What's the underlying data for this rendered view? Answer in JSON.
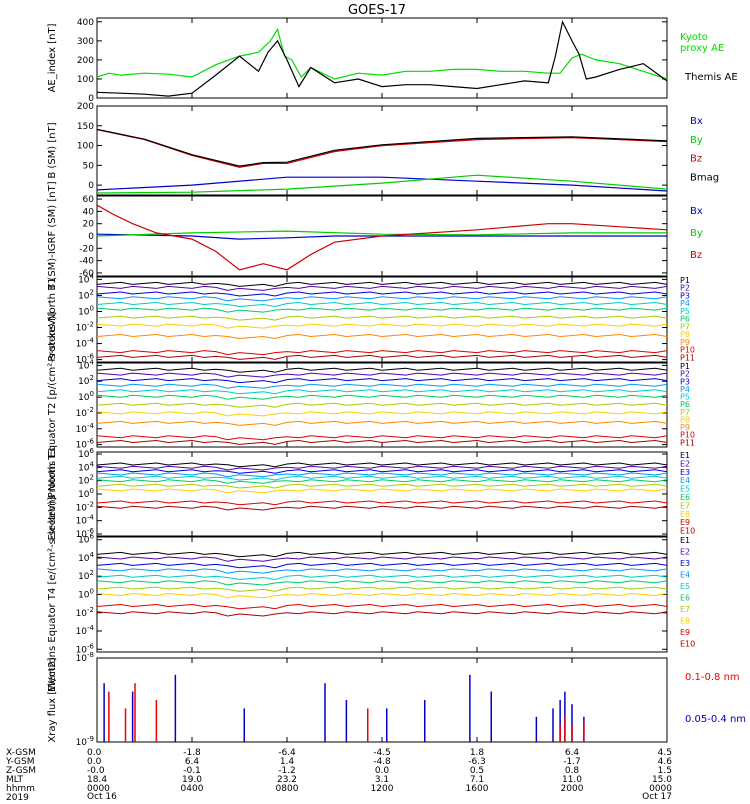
{
  "title": "GOES-17",
  "x_axis": {
    "range_hours": [
      0,
      24
    ],
    "tick_hours": [
      0,
      4,
      8,
      12,
      16,
      20,
      24
    ],
    "hhmm": [
      "0000",
      "0400",
      "0800",
      "1200",
      "1600",
      "2000",
      "0000"
    ],
    "row_labels": [
      "X-GSM",
      "Y-GSM",
      "Z-GSM",
      "MLT",
      "hhmm",
      "2019"
    ],
    "x_gsm": [
      "0.0",
      "-1.8",
      "-6.4",
      "-4.5",
      "1.8",
      "6.4",
      "4.5"
    ],
    "y_gsm": [
      "0.0",
      "6.4",
      "1.4",
      "-4.8",
      "-6.3",
      "-1.7",
      "4.6"
    ],
    "z_gsm": [
      "-0.0",
      "-0.1",
      "-1.2",
      "0.0",
      "0.5",
      "0.8",
      "1.5"
    ],
    "mlt": [
      "18.4",
      "19.0",
      "23.2",
      "3.1",
      "7.1",
      "11.0",
      "15.0"
    ],
    "dates": [
      {
        "hour": 0,
        "label": "Oct 16"
      },
      {
        "hour": 24,
        "label": "Oct 17"
      }
    ]
  },
  "chart_data": [
    {
      "type": "line",
      "panel": "ae",
      "ylabel": "AE_index [nT]",
      "ylim": [
        0,
        420
      ],
      "ticks": [
        "0",
        "100",
        "200",
        "300",
        "400"
      ],
      "tick_values": [
        0,
        100,
        200,
        300,
        400
      ],
      "legend": [
        {
          "text": "Kyoto proxy AE",
          "color": "#00dd00"
        },
        {
          "text": "Themis AE",
          "color": "#000000"
        }
      ],
      "series": [
        {
          "name": "Kyoto proxy AE",
          "color": "#00dd00",
          "x": [
            0,
            0.5,
            1,
            2,
            3,
            4,
            5,
            6,
            6.8,
            7.3,
            7.6,
            7.9,
            8.2,
            8.6,
            9,
            10,
            11,
            12,
            13,
            14,
            15,
            16,
            17,
            18,
            19,
            19.5,
            20,
            20.4,
            21,
            22,
            23,
            24
          ],
          "y": [
            110,
            130,
            120,
            130,
            125,
            110,
            175,
            220,
            240,
            300,
            360,
            220,
            200,
            110,
            160,
            100,
            130,
            120,
            140,
            140,
            150,
            150,
            140,
            140,
            130,
            130,
            210,
            230,
            200,
            180,
            140,
            100
          ]
        },
        {
          "name": "Themis AE",
          "color": "#000000",
          "x": [
            0,
            1,
            2,
            3,
            4,
            5,
            6,
            6.8,
            7.2,
            7.6,
            8,
            8.5,
            9,
            10,
            11,
            12,
            13,
            14,
            15,
            16,
            17,
            18,
            19,
            19.3,
            19.6,
            20,
            20.3,
            20.6,
            21,
            22,
            23,
            24
          ],
          "y": [
            30,
            25,
            20,
            10,
            25,
            120,
            220,
            140,
            240,
            300,
            200,
            60,
            160,
            80,
            100,
            60,
            70,
            70,
            60,
            50,
            70,
            90,
            80,
            220,
            400,
            300,
            230,
            100,
            110,
            150,
            180,
            90
          ]
        }
      ]
    },
    {
      "type": "line",
      "panel": "bsm",
      "ylabel": "B (SM) [nT]",
      "ylim": [
        -25,
        200
      ],
      "ticks": [
        "-50",
        "0",
        "50",
        "100",
        "150",
        "200"
      ],
      "tick_values": [
        -50,
        0,
        50,
        100,
        150,
        200
      ],
      "legend": [
        {
          "text": "Bx",
          "color": "#0000cc"
        },
        {
          "text": "By",
          "color": "#00cc00"
        },
        {
          "text": "Bz",
          "color": "#cc0000"
        },
        {
          "text": "Bmag",
          "color": "#000000"
        }
      ],
      "series": [
        {
          "name": "Bx",
          "color": "#0000cc",
          "x": [
            0,
            4,
            8,
            12,
            16,
            20,
            24
          ],
          "y": [
            -12,
            0,
            20,
            20,
            10,
            0,
            -15
          ]
        },
        {
          "name": "By",
          "color": "#00cc00",
          "x": [
            0,
            4,
            8,
            12,
            16,
            20,
            24
          ],
          "y": [
            -20,
            -18,
            -10,
            5,
            25,
            10,
            -10
          ]
        },
        {
          "name": "Bz",
          "color": "#cc0000",
          "x": [
            0,
            2,
            4,
            6,
            7,
            8,
            10,
            12,
            16,
            20,
            24
          ],
          "y": [
            140,
            115,
            75,
            45,
            55,
            55,
            85,
            100,
            115,
            120,
            110
          ]
        },
        {
          "name": "Bmag",
          "color": "#000000",
          "x": [
            0,
            2,
            4,
            6,
            7,
            8,
            10,
            12,
            16,
            20,
            24
          ],
          "y": [
            141,
            116,
            77,
            48,
            57,
            58,
            88,
            102,
            118,
            122,
            112
          ]
        }
      ]
    },
    {
      "type": "line",
      "panel": "bsm_igrf",
      "ylabel": "B (SM)-IGRF (SM) [nT]",
      "ylim": [
        -65,
        65
      ],
      "ticks": [
        "-60",
        "-40",
        "-20",
        "0",
        "20",
        "40",
        "60"
      ],
      "tick_values": [
        -60,
        -40,
        -20,
        0,
        20,
        40,
        60
      ],
      "legend": [
        {
          "text": "Bx",
          "color": "#0000cc"
        },
        {
          "text": "By",
          "color": "#00cc00"
        },
        {
          "text": "Bz",
          "color": "#cc0000"
        }
      ],
      "series": [
        {
          "name": "Bx",
          "color": "#0000cc",
          "x": [
            0,
            4,
            6,
            8,
            10,
            12,
            16,
            20,
            24
          ],
          "y": [
            3,
            0,
            -5,
            -3,
            0,
            0,
            0,
            0,
            0
          ]
        },
        {
          "name": "By",
          "color": "#00cc00",
          "x": [
            0,
            4,
            8,
            12,
            16,
            20,
            24
          ],
          "y": [
            0,
            5,
            8,
            3,
            2,
            5,
            5
          ]
        },
        {
          "name": "Bz",
          "color": "#cc0000",
          "x": [
            0,
            0.7,
            1.5,
            2.5,
            4,
            5,
            6,
            7,
            8,
            9,
            10,
            12,
            16,
            19,
            20,
            24
          ],
          "y": [
            50,
            35,
            20,
            5,
            -5,
            -25,
            -55,
            -45,
            -55,
            -30,
            -10,
            0,
            10,
            20,
            20,
            10
          ]
        }
      ]
    },
    {
      "type": "line",
      "panel": "protons_t1",
      "ylabel": "Protons North T1",
      "scale": "log",
      "ylim_log10": [
        -6.3,
        4.3
      ],
      "ticks": [
        "10^4",
        "10^2",
        "10^0",
        "10^-2",
        "10^-4",
        "10^-6"
      ],
      "tick_values": [
        4,
        2,
        0,
        -2,
        -4,
        -6
      ],
      "legend": [
        "P1",
        "P2",
        "P3",
        "P4",
        "P5",
        "P6",
        "P7",
        "P8",
        "P9",
        "P10",
        "P11"
      ],
      "legend_colors": [
        "#000000",
        "#5500aa",
        "#0000dd",
        "#0099ff",
        "#00cccc",
        "#00cc66",
        "#aacc00",
        "#ffcc00",
        "#ff8800",
        "#dd0000",
        "#aa0000"
      ],
      "levels_log10": [
        3.5,
        3.0,
        2.3,
        1.7,
        1.0,
        0.3,
        -0.7,
        -1.7,
        -3.0,
        -5.0,
        -5.6
      ]
    },
    {
      "type": "line",
      "panel": "protons_t2",
      "ylabel": "Protons Equator T2 [p/(cm²-s-sr-keV)]",
      "scale": "log",
      "ylim_log10": [
        -6.3,
        4.3
      ],
      "ticks": [
        "10^4",
        "10^2",
        "10^0",
        "10^-2",
        "10^-4",
        "10^-6"
      ],
      "tick_values": [
        4,
        2,
        0,
        -2,
        -4,
        -6
      ],
      "legend": [
        "P1",
        "P2",
        "P3",
        "P4",
        "P5",
        "P6",
        "P7",
        "P8",
        "P9",
        "P10",
        "P11"
      ],
      "legend_colors": [
        "#000000",
        "#5500aa",
        "#0000dd",
        "#0099ff",
        "#00cccc",
        "#00cc66",
        "#aacc00",
        "#ffcc00",
        "#ff8800",
        "#dd0000",
        "#aa0000"
      ],
      "levels_log10": [
        3.5,
        2.9,
        2.2,
        1.5,
        0.8,
        0.1,
        -0.9,
        -2.0,
        -3.2,
        -5.0,
        -5.6
      ]
    },
    {
      "type": "line",
      "panel": "electrons_t3",
      "ylabel": "Electrons North T3",
      "scale": "log",
      "ylim_log10": [
        -6.3,
        6.3
      ],
      "ticks": [
        "10^6",
        "10^4",
        "10^2",
        "10^0",
        "10^-2",
        "10^-4",
        "10^-6"
      ],
      "tick_values": [
        6,
        4,
        2,
        0,
        -2,
        -4,
        -6
      ],
      "legend": [
        "E1",
        "E2",
        "E3",
        "E4",
        "E5",
        "E6",
        "E7",
        "E8",
        "E9",
        "E10"
      ],
      "legend_colors": [
        "#000000",
        "#5500aa",
        "#0000dd",
        "#0099ff",
        "#00cccc",
        "#00cc66",
        "#aacc00",
        "#ffcc00",
        "#dd0000",
        "#aa0000"
      ],
      "levels_log10": [
        4.5,
        4.0,
        3.5,
        3.0,
        2.5,
        2.0,
        1.3,
        0.6,
        -1.2,
        -2.0
      ]
    },
    {
      "type": "line",
      "panel": "electrons_t4",
      "ylabel": "Electrons Equator T4 [e/(cm²-s-sr-keV)]",
      "scale": "log",
      "ylim_log10": [
        -6.3,
        6.3
      ],
      "ticks": [
        "10^6",
        "10^4",
        "10^2",
        "10^0",
        "10^-2",
        "10^-4",
        "10^-6"
      ],
      "tick_values": [
        6,
        4,
        2,
        0,
        -2,
        -4,
        -6
      ],
      "legend": [
        "E1",
        "E2",
        "E3",
        "E4",
        "E5",
        "E6",
        "E7",
        "E8",
        "E9",
        "E10"
      ],
      "legend_colors": [
        "#000000",
        "#5500aa",
        "#0000dd",
        "#0099ff",
        "#00cccc",
        "#00cc66",
        "#aacc00",
        "#ffcc00",
        "#dd0000",
        "#aa0000"
      ],
      "levels_log10": [
        4.5,
        4.0,
        3.3,
        2.7,
        2.0,
        1.4,
        0.7,
        0.0,
        -1.2,
        -2.0
      ]
    },
    {
      "type": "line",
      "panel": "xray",
      "ylabel": "Xray flux [W/m2]",
      "scale": "log",
      "ylim_log10": [
        -9,
        -8
      ],
      "ticks": [
        "10^-8",
        "10^-9"
      ],
      "tick_values": [
        -8,
        -9
      ],
      "legend": [
        {
          "text": "0.1-0.8 nm",
          "color": "#ee0000"
        },
        {
          "text": "0.05-0.4 nm",
          "color": "#0000cc"
        }
      ],
      "series": [
        {
          "name": "0.05-0.4 nm",
          "color": "#0000cc",
          "x": [
            0.3,
            1.5,
            3.3,
            6.2,
            9.6,
            10.5,
            12.2,
            13.8,
            15.7,
            16.6,
            18.5,
            19.2,
            19.5,
            19.7,
            20,
            20.5
          ],
          "y": [
            -8.3,
            -8.4,
            -8.2,
            -8.6,
            -8.3,
            -8.5,
            -8.6,
            -8.5,
            -8.2,
            -8.4,
            -8.7,
            -8.6,
            -8.5,
            -8.4,
            -8.55,
            -8.7
          ]
        },
        {
          "name": "0.1-0.8 nm",
          "color": "#ee0000",
          "x": [
            0.5,
            1.2,
            1.6,
            2.5,
            11.4,
            19.5,
            19.7,
            20.0,
            20.5
          ],
          "y": [
            -8.4,
            -8.6,
            -8.3,
            -8.5,
            -8.6,
            -8.8,
            -8.7,
            -8.8,
            -8.75
          ]
        }
      ]
    }
  ]
}
